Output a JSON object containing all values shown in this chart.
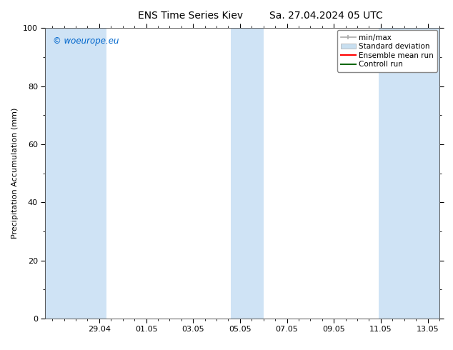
{
  "title_left": "ENS Time Series Kiev",
  "title_right": "Sa. 27.04.2024 05 UTC",
  "ylabel": "Precipitation Accumulation (mm)",
  "watermark": "© woeurope.eu",
  "watermark_color": "#0066cc",
  "ylim": [
    0,
    100
  ],
  "yticks": [
    0,
    20,
    40,
    60,
    80,
    100
  ],
  "background_color": "#ffffff",
  "plot_bg_color": "#ffffff",
  "shaded_band_color": "#cfe3f5",
  "shaded_band_alpha": 1.0,
  "num_days": 16.5,
  "x_min": -0.3,
  "x_max": 16.5,
  "tick_labels": [
    "29.04",
    "01.05",
    "03.05",
    "05.05",
    "07.05",
    "09.05",
    "11.05",
    "13.05"
  ],
  "tick_positions_days": [
    2,
    4,
    6,
    8,
    10,
    12,
    14,
    16
  ],
  "shaded_bands": [
    {
      "start_day": -0.3,
      "end_day": 2.3
    },
    {
      "start_day": 7.6,
      "end_day": 9.0
    },
    {
      "start_day": 13.9,
      "end_day": 16.5
    }
  ],
  "legend_items": [
    {
      "label": "min/max",
      "color": "#aaaaaa",
      "lw": 1.2
    },
    {
      "label": "Standard deviation",
      "color": "#c8dff0",
      "lw": 8
    },
    {
      "label": "Ensemble mean run",
      "color": "#ff0000",
      "lw": 1.5
    },
    {
      "label": "Controll run",
      "color": "#006600",
      "lw": 1.5
    }
  ],
  "title_fontsize": 10,
  "axis_label_fontsize": 8,
  "tick_fontsize": 8,
  "legend_fontsize": 7.5,
  "watermark_fontsize": 8.5
}
